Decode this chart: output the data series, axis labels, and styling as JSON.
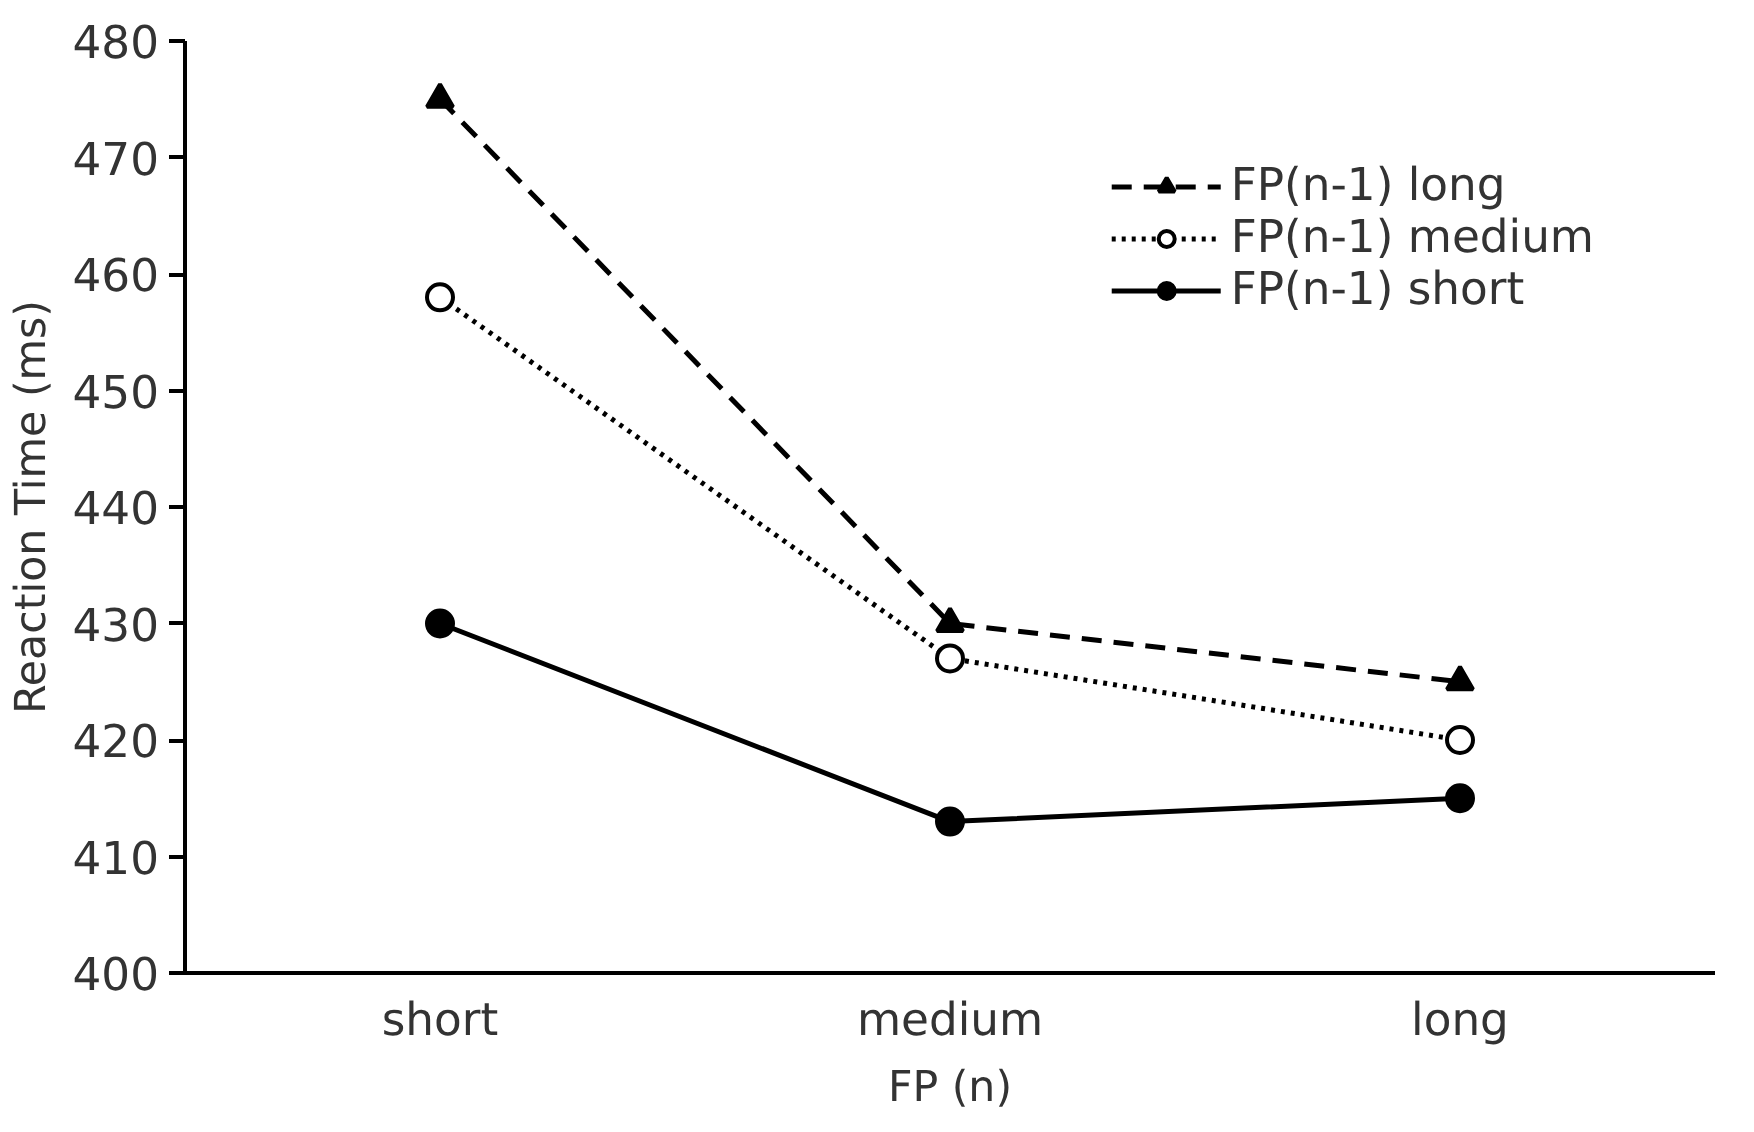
{
  "chart_data": {
    "type": "line",
    "xlabel": "FP (n)",
    "ylabel": "Reaction Time (ms)",
    "categories": [
      "short",
      "medium",
      "long"
    ],
    "series": [
      {
        "name": "FP(n-1) long",
        "color": "#000000",
        "values": [
          475,
          430,
          425
        ],
        "marker": "triangle",
        "line_style": "dashed"
      },
      {
        "name": "FP(n-1) medium",
        "color": "#000000",
        "values": [
          458,
          427,
          420
        ],
        "marker": "circle",
        "line_style": "dotted"
      },
      {
        "name": "FP(n-1) short",
        "color": "#000000",
        "values": [
          430,
          413,
          415
        ],
        "marker": "circle",
        "line_style": "solid"
      }
    ],
    "ylim": [
      400,
      480
    ],
    "yticks": [
      400,
      410,
      420,
      430,
      440,
      450,
      460,
      470,
      480
    ],
    "grid": false,
    "legend": "top right"
  }
}
